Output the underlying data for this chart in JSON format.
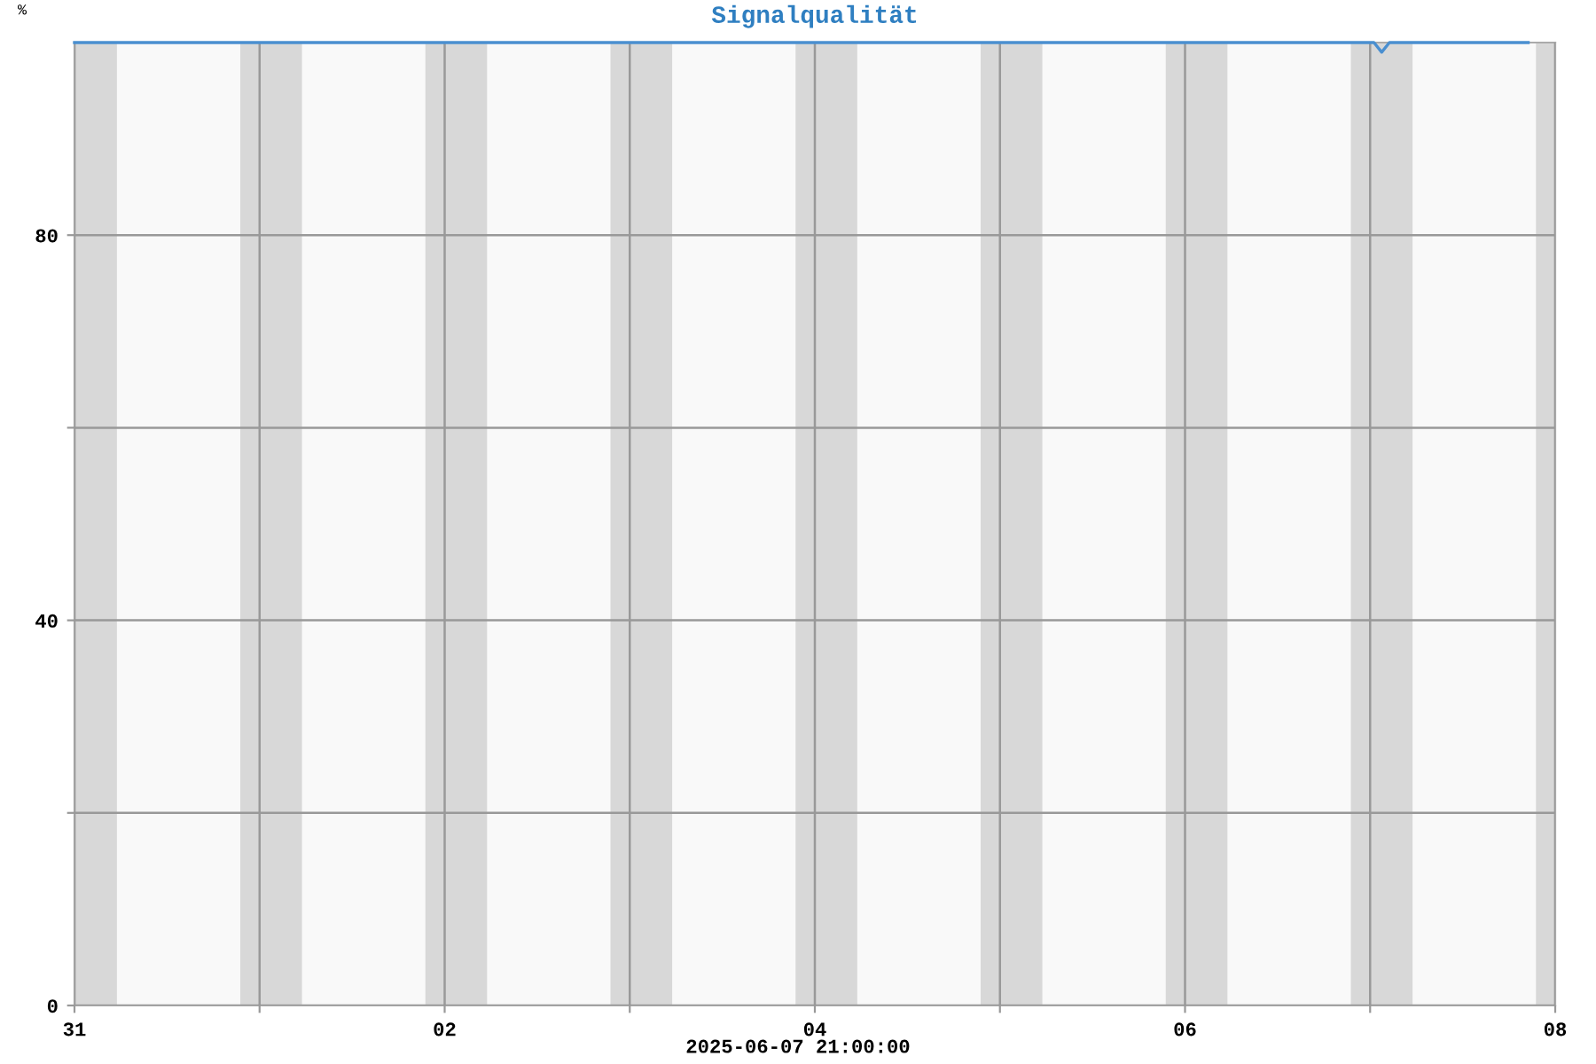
{
  "chart_data": {
    "type": "line",
    "title": "Signalqualität",
    "ylabel": "%",
    "x": [
      "2025-05-31T00:00",
      "2025-06-07T00:30",
      "2025-06-07T01:30",
      "2025-06-07T02:30",
      "2025-06-07T20:30"
    ],
    "series": [
      {
        "color": "#4a8fd0",
        "values": [
          100,
          100,
          99,
          100,
          100
        ]
      }
    ],
    "xlim": [
      "2025-05-31T00:00",
      "2025-06-08T00:00"
    ],
    "xticks": [
      {
        "value": "2025-05-31",
        "label": "31"
      },
      {
        "value": "2025-06-01",
        "label": null
      },
      {
        "value": "2025-06-02",
        "label": "02"
      },
      {
        "value": "2025-06-03",
        "label": null
      },
      {
        "value": "2025-06-04",
        "label": "04"
      },
      {
        "value": "2025-06-05",
        "label": null
      },
      {
        "value": "2025-06-06",
        "label": "06"
      },
      {
        "value": "2025-06-07",
        "label": null
      },
      {
        "value": "2025-06-08",
        "label": "08"
      }
    ],
    "ylim": [
      0,
      100
    ],
    "yticks": [
      0,
      {
        "value": 20,
        "label": null
      },
      40,
      {
        "value": 60,
        "label": null
      },
      80
    ],
    "grid": true,
    "line_style": "solid",
    "marker": "none",
    "bands": [
      {
        "axis": "x",
        "from": "2025-05-31T00:00",
        "to": "2025-05-31T05:30",
        "color": "#d8d8d8"
      },
      {
        "axis": "x",
        "from": "2025-05-31T21:30",
        "to": "2025-06-01T05:30",
        "color": "#d8d8d8"
      },
      {
        "axis": "x",
        "from": "2025-06-01T21:30",
        "to": "2025-06-02T05:30",
        "color": "#d8d8d8"
      },
      {
        "axis": "x",
        "from": "2025-06-02T21:30",
        "to": "2025-06-03T05:30",
        "color": "#d8d8d8"
      },
      {
        "axis": "x",
        "from": "2025-06-03T21:30",
        "to": "2025-06-04T05:30",
        "color": "#d8d8d8"
      },
      {
        "axis": "x",
        "from": "2025-06-04T21:30",
        "to": "2025-06-05T05:30",
        "color": "#d8d8d8"
      },
      {
        "axis": "x",
        "from": "2025-06-05T21:30",
        "to": "2025-06-06T05:30",
        "color": "#d8d8d8"
      },
      {
        "axis": "x",
        "from": "2025-06-06T21:30",
        "to": "2025-06-07T05:30",
        "color": "#d8d8d8"
      },
      {
        "axis": "x",
        "from": "2025-06-07T21:30",
        "to": "2025-06-08T00:00",
        "color": "#d8d8d8"
      }
    ],
    "annotations": [
      "2025-06-07 21:00:00"
    ]
  }
}
